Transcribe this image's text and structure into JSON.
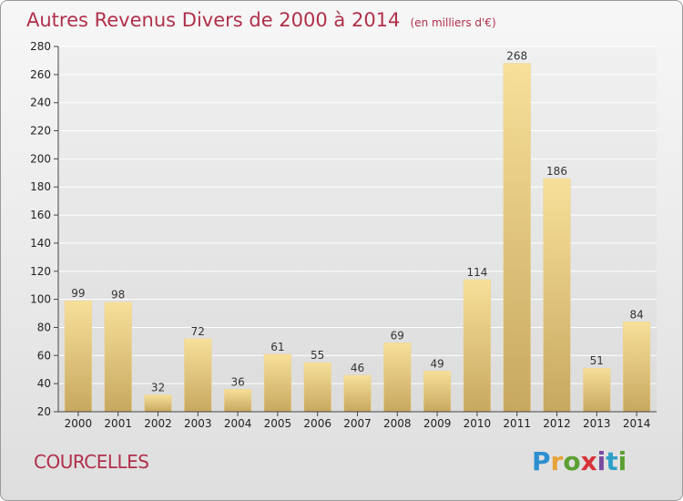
{
  "chart_data": {
    "type": "bar",
    "title": "Autres Revenus Divers de 2000 à 2014",
    "subtitle": "(en milliers d'€)",
    "categories": [
      "2000",
      "2001",
      "2002",
      "2003",
      "2004",
      "2005",
      "2006",
      "2007",
      "2008",
      "2009",
      "2010",
      "2011",
      "2012",
      "2013",
      "2014"
    ],
    "values": [
      99,
      98,
      32,
      72,
      36,
      61,
      55,
      46,
      69,
      49,
      114,
      268,
      186,
      51,
      84
    ],
    "ylim": [
      20,
      280
    ],
    "yticks": [
      20,
      40,
      60,
      80,
      100,
      120,
      140,
      160,
      180,
      200,
      220,
      240,
      260,
      280
    ],
    "grid": true,
    "bar_color": "#e8cc82"
  },
  "footer": {
    "commune": "COURCELLES",
    "logo_text": "Proxiti"
  },
  "colors": {
    "title": "#b0304a",
    "bar_light": "#f7e09a",
    "bar_dark": "#c8a860"
  }
}
